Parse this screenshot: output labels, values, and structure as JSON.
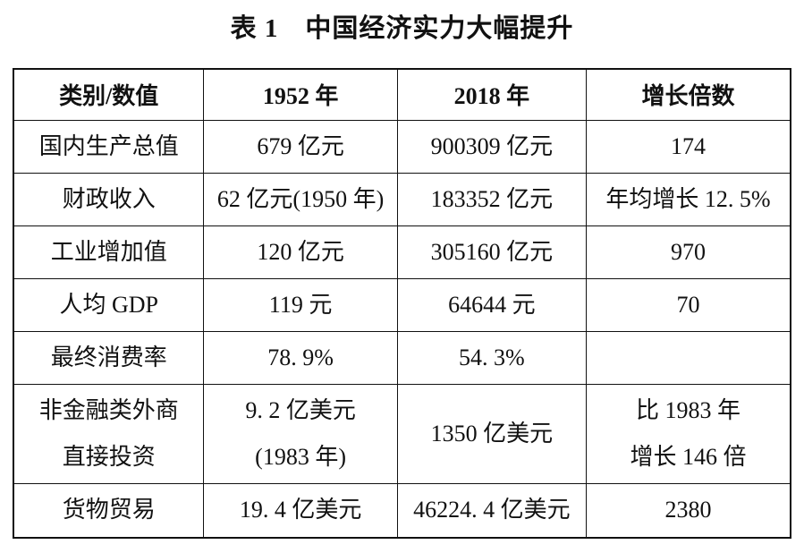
{
  "title": "表 1　中国经济实力大幅提升",
  "table": {
    "headers": [
      "类别/数值",
      "1952 年",
      "2018 年",
      "增长倍数"
    ],
    "rows": [
      {
        "cells": [
          [
            "国内生产总值"
          ],
          [
            "679 亿元"
          ],
          [
            "900309 亿元"
          ],
          [
            "174"
          ]
        ]
      },
      {
        "cells": [
          [
            "财政收入"
          ],
          [
            "62 亿元(1950 年)"
          ],
          [
            "183352 亿元"
          ],
          [
            "年均增长 12. 5%"
          ]
        ]
      },
      {
        "cells": [
          [
            "工业增加值"
          ],
          [
            "120 亿元"
          ],
          [
            "305160 亿元"
          ],
          [
            "970"
          ]
        ]
      },
      {
        "cells": [
          [
            "人均 GDP"
          ],
          [
            "119 元"
          ],
          [
            "64644 元"
          ],
          [
            "70"
          ]
        ]
      },
      {
        "cells": [
          [
            "最终消费率"
          ],
          [
            "78. 9%"
          ],
          [
            "54. 3%"
          ],
          [
            ""
          ]
        ]
      },
      {
        "cells": [
          [
            "非金融类外商",
            "直接投资"
          ],
          [
            "9. 2 亿美元",
            "(1983 年)"
          ],
          [
            "1350 亿美元"
          ],
          [
            "比 1983 年",
            "增长 146 倍"
          ]
        ]
      },
      {
        "cells": [
          [
            "货物贸易"
          ],
          [
            "19. 4 亿美元"
          ],
          [
            "46224. 4 亿美元"
          ],
          [
            "2380"
          ]
        ]
      }
    ]
  },
  "colors": {
    "background": "#ffffff",
    "text": "#111111",
    "border": "#111111"
  }
}
